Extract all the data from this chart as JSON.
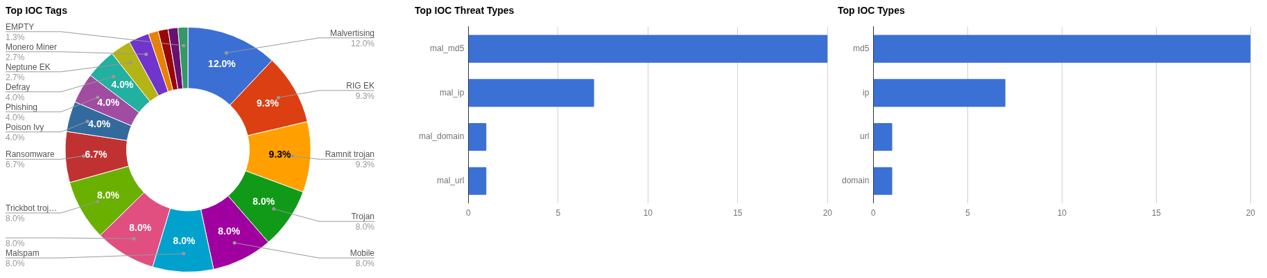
{
  "chart_data": [
    {
      "type": "donut",
      "title": "Top IOC Tags",
      "categories": [
        "Malvertising",
        "RIG EK",
        "Ramnit trojan",
        "Trojan",
        "Mobile",
        "Malspam",
        null,
        "Trickbot troj…",
        "Ransomware",
        "Poison Ivy",
        "Phishing",
        "Defray",
        "Neptune EK",
        "Monero Miner",
        null,
        null,
        null,
        "EMPTY"
      ],
      "values": [
        12.0,
        9.3,
        9.3,
        8.0,
        8.0,
        8.0,
        8.0,
        8.0,
        6.7,
        4.0,
        4.0,
        4.0,
        2.7,
        2.7,
        1.3,
        1.3,
        1.3,
        1.3
      ],
      "colors": [
        "#3b6fd4",
        "#dc3f12",
        "#ffa000",
        "#109a18",
        "#a000a0",
        "#00a1cc",
        "#e04f80",
        "#6ab000",
        "#c03232",
        "#336a9e",
        "#a04ca0",
        "#22b0a0",
        "#b4b414",
        "#7035cc",
        "#e88000",
        "#990808",
        "#6a1070",
        "#349868"
      ],
      "value_labels": [
        "12.0%",
        "9.3%",
        "9.3%",
        "8.0%",
        "8.0%",
        "8.0%",
        "8.0%",
        "8.0%",
        "6.7%",
        "4.0%",
        "4.0%",
        "4.0%",
        "2.7%",
        "2.7%",
        null,
        null,
        null,
        "1.3%"
      ]
    },
    {
      "type": "bar",
      "orientation": "horizontal",
      "title": "Top IOC Threat Types",
      "categories": [
        "mal_md5",
        "mal_ip",
        "mal_domain",
        "mal_url"
      ],
      "values": [
        20,
        7,
        1,
        1
      ],
      "color": "#3b71d4",
      "xlim": [
        0,
        20
      ],
      "xticks": [
        0,
        5,
        10,
        15,
        20
      ],
      "grid": "x"
    },
    {
      "type": "bar",
      "orientation": "horizontal",
      "title": "Top IOC Types",
      "categories": [
        "md5",
        "ip",
        "url",
        "domain"
      ],
      "values": [
        20,
        7,
        1,
        1
      ],
      "color": "#3b71d4",
      "xlim": [
        0,
        20
      ],
      "xticks": [
        0,
        5,
        10,
        15,
        20
      ],
      "grid": "x"
    }
  ]
}
